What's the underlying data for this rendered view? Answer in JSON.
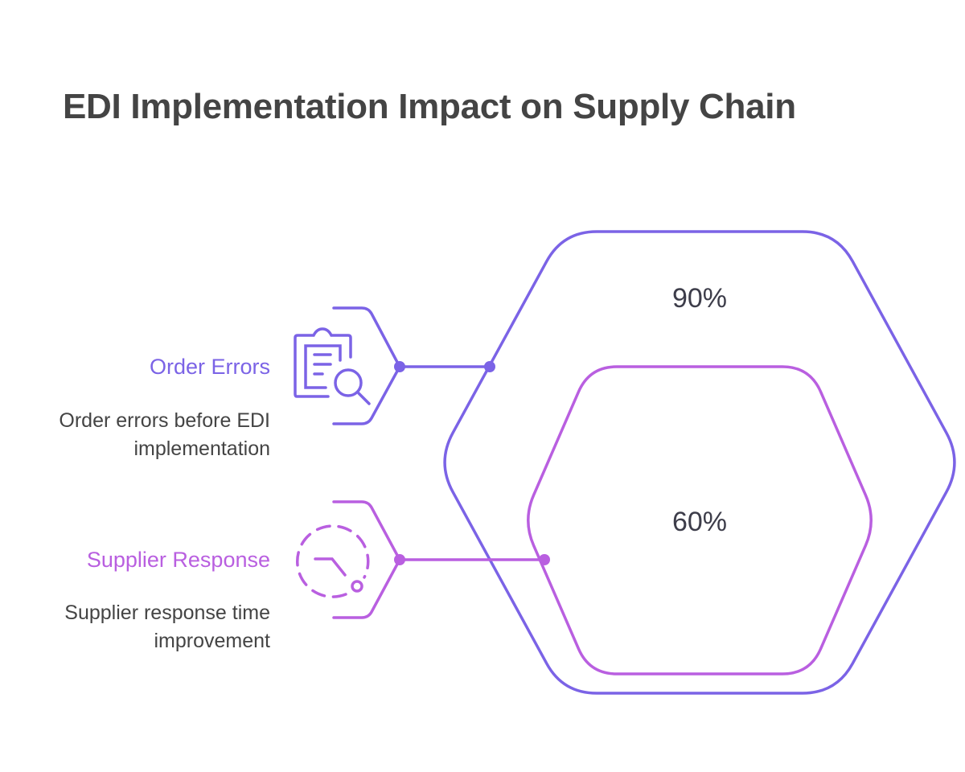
{
  "title": "EDI Implementation Impact on Supply Chain",
  "colors": {
    "order_errors": "#7B63E6",
    "supplier_response": "#B95FE0",
    "text": "#444444"
  },
  "items": [
    {
      "label": "Order Errors",
      "description": "Order errors before EDI implementation",
      "value": "90%",
      "icon": "clipboard-search-icon"
    },
    {
      "label": "Supplier Response",
      "description": "Supplier response time improvement",
      "value": "60%",
      "icon": "clock-dashed-icon"
    }
  ]
}
